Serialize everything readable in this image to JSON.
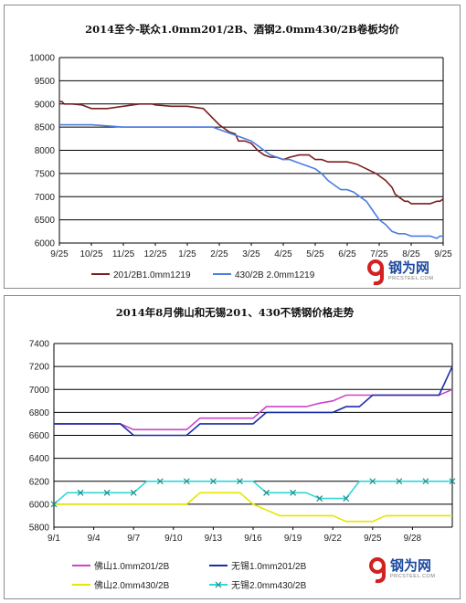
{
  "charts": [
    {
      "type": "line",
      "title": "2014至今-联众1.0mm201/2B、酒钢2.0mm430/2B卷板均价",
      "ylim": [
        6000,
        10000
      ],
      "yticks": [
        "6000",
        "6500",
        "7000",
        "7500",
        "8000",
        "8500",
        "9000",
        "9500",
        "10000"
      ],
      "x_labels": [
        "9/25",
        "10/25",
        "11/25",
        "12/25",
        "1/25",
        "2/25",
        "3/25",
        "4/25",
        "5/25",
        "6/25",
        "7/25",
        "8/25",
        "9/25"
      ],
      "grid": true,
      "legend_position": "bottom",
      "series": [
        {
          "name": "201/2B1.0mm1219",
          "color": "#7b1e1e",
          "x": [
            0,
            0.08,
            0.15,
            0.4,
            0.7,
            1.0,
            1.5,
            2.0,
            2.5,
            2.9,
            3.0,
            3.5,
            4.0,
            4.5,
            5.0,
            5.3,
            5.5,
            5.6,
            5.8,
            6.0,
            6.2,
            6.4,
            6.6,
            6.8,
            7.0,
            7.2,
            7.5,
            7.8,
            8.0,
            8.2,
            8.4,
            8.6,
            9.0,
            9.3,
            9.6,
            9.9,
            10.0,
            10.2,
            10.4,
            10.5,
            10.7,
            10.8,
            10.9,
            11.0,
            11.2,
            11.4,
            11.6,
            11.8,
            11.9,
            12.0
          ],
          "y": [
            9050,
            9050,
            9000,
            9000,
            8980,
            8900,
            8900,
            8950,
            9000,
            9000,
            8980,
            8950,
            8950,
            8900,
            8550,
            8400,
            8350,
            8200,
            8200,
            8150,
            8000,
            7900,
            7850,
            7850,
            7800,
            7850,
            7900,
            7900,
            7800,
            7800,
            7750,
            7750,
            7750,
            7700,
            7600,
            7500,
            7450,
            7350,
            7200,
            7050,
            6950,
            6900,
            6900,
            6850,
            6850,
            6850,
            6850,
            6900,
            6900,
            6950
          ]
        },
        {
          "name": "430/2B 2.0mm1219",
          "color": "#4a7de0",
          "x": [
            0,
            1.0,
            2.0,
            3.0,
            4.0,
            4.8,
            5.0,
            5.2,
            5.4,
            5.6,
            5.8,
            6.0,
            6.2,
            6.4,
            6.6,
            6.8,
            7.0,
            7.2,
            7.4,
            7.6,
            7.8,
            8.0,
            8.2,
            8.4,
            8.6,
            8.8,
            9.0,
            9.2,
            9.4,
            9.6,
            9.8,
            10.0,
            10.2,
            10.4,
            10.6,
            10.8,
            11.0,
            11.2,
            11.4,
            11.6,
            11.8,
            11.9,
            12.0
          ],
          "y": [
            8550,
            8550,
            8500,
            8500,
            8500,
            8500,
            8450,
            8400,
            8350,
            8300,
            8250,
            8200,
            8100,
            8000,
            7900,
            7850,
            7800,
            7800,
            7750,
            7700,
            7650,
            7600,
            7500,
            7350,
            7250,
            7150,
            7150,
            7100,
            7000,
            6900,
            6700,
            6500,
            6400,
            6250,
            6200,
            6200,
            6150,
            6150,
            6150,
            6150,
            6100,
            6150,
            6150
          ]
        }
      ]
    },
    {
      "type": "line",
      "title": "2014年8月佛山和无锡201、430不锈钢价格走势",
      "ylim": [
        5800,
        7400
      ],
      "yticks": [
        "5800",
        "6000",
        "6200",
        "6400",
        "6600",
        "6800",
        "7000",
        "7200",
        "7400"
      ],
      "x_labels": [
        "9/1",
        "9/4",
        "9/7",
        "9/10",
        "9/13",
        "9/16",
        "9/19",
        "9/22",
        "9/25",
        "9/28"
      ],
      "grid": true,
      "legend_position": "bottom",
      "series": [
        {
          "name": "佛山1.0mm201/2B",
          "color": "#cc44cc",
          "marker": "none",
          "x": [
            0,
            1,
            2,
            3,
            4,
            5,
            6,
            7,
            8,
            9,
            10,
            11,
            12,
            13,
            14,
            15,
            16,
            17,
            18,
            19,
            20,
            21,
            22,
            23,
            24,
            25,
            26,
            27,
            28,
            29,
            30
          ],
          "y": [
            6700,
            6700,
            6700,
            6700,
            6700,
            6700,
            6650,
            6650,
            6650,
            6650,
            6650,
            6750,
            6750,
            6750,
            6750,
            6750,
            6850,
            6850,
            6850,
            6850,
            6880,
            6900,
            6950,
            6950,
            6950,
            6950,
            6950,
            6950,
            6950,
            6950,
            7000
          ]
        },
        {
          "name": "无锡1.0mm201/2B",
          "color": "#1a2ea8",
          "marker": "none",
          "x": [
            0,
            1,
            2,
            3,
            4,
            5,
            6,
            7,
            8,
            9,
            10,
            11,
            12,
            13,
            14,
            15,
            16,
            17,
            18,
            19,
            20,
            21,
            22,
            23,
            24,
            25,
            26,
            27,
            28,
            29,
            30
          ],
          "y": [
            6700,
            6700,
            6700,
            6700,
            6700,
            6700,
            6600,
            6600,
            6600,
            6600,
            6600,
            6700,
            6700,
            6700,
            6700,
            6700,
            6800,
            6800,
            6800,
            6800,
            6800,
            6800,
            6850,
            6850,
            6950,
            6950,
            6950,
            6950,
            6950,
            6950,
            7200
          ]
        },
        {
          "name": "佛山2.0mm430/2B",
          "color": "#e6e600",
          "marker": "none",
          "x": [
            0,
            1,
            2,
            3,
            4,
            5,
            6,
            7,
            8,
            9,
            10,
            11,
            12,
            13,
            14,
            15,
            16,
            17,
            18,
            19,
            20,
            21,
            22,
            23,
            24,
            25,
            26,
            27,
            28,
            29,
            30
          ],
          "y": [
            6000,
            6000,
            6000,
            6000,
            6000,
            6000,
            6000,
            6000,
            6000,
            6000,
            6000,
            6100,
            6100,
            6100,
            6100,
            6000,
            5950,
            5900,
            5900,
            5900,
            5900,
            5900,
            5850,
            5850,
            5850,
            5900,
            5900,
            5900,
            5900,
            5900,
            5900
          ]
        },
        {
          "name": "无锡2.0mm430/2B",
          "color": "#33d6d6",
          "marker": "x",
          "x": [
            0,
            1,
            2,
            3,
            4,
            5,
            6,
            7,
            8,
            9,
            10,
            11,
            12,
            13,
            14,
            15,
            16,
            17,
            18,
            19,
            20,
            21,
            22,
            23,
            24,
            25,
            26,
            27,
            28,
            29,
            30
          ],
          "y": [
            6000,
            6100,
            6100,
            6100,
            6100,
            6100,
            6100,
            6200,
            6200,
            6200,
            6200,
            6200,
            6200,
            6200,
            6200,
            6200,
            6100,
            6100,
            6100,
            6100,
            6050,
            6050,
            6050,
            6200,
            6200,
            6200,
            6200,
            6200,
            6200,
            6200,
            6200
          ]
        }
      ]
    }
  ],
  "chart_data": [
    {
      "type": "line",
      "title": "2014至今-联众1.0mm201/2B、酒钢2.0mm430/2B卷板均价",
      "ylim": [
        6000,
        10000
      ],
      "categories": [
        "9/25",
        "10/25",
        "11/25",
        "12/25",
        "1/25",
        "2/25",
        "3/25",
        "4/25",
        "5/25",
        "6/25",
        "7/25",
        "8/25",
        "9/25"
      ],
      "series": [
        {
          "name": "201/2B1.0mm1219",
          "values": [
            9050,
            8950,
            9000,
            9000,
            8950,
            8950,
            8250,
            7850,
            7850,
            7750,
            7600,
            6900,
            6950
          ]
        },
        {
          "name": "430/2B 2.0mm1219",
          "values": [
            8550,
            8550,
            8500,
            8500,
            8500,
            8500,
            8200,
            7800,
            7600,
            7150,
            6500,
            6150,
            6150
          ]
        }
      ]
    },
    {
      "type": "line",
      "title": "2014年8月佛山和无锡201、430不锈钢价格走势",
      "ylim": [
        5800,
        7400
      ],
      "categories": [
        "9/1",
        "9/4",
        "9/7",
        "9/10",
        "9/13",
        "9/16",
        "9/19",
        "9/22",
        "9/25",
        "9/28"
      ],
      "series": [
        {
          "name": "佛山1.0mm201/2B",
          "values": [
            6700,
            6700,
            6650,
            6750,
            6750,
            6850,
            6900,
            6950,
            6950,
            6950
          ]
        },
        {
          "name": "无锡1.0mm201/2B",
          "values": [
            6700,
            6700,
            6600,
            6700,
            6700,
            6800,
            6800,
            6850,
            6950,
            6950
          ]
        },
        {
          "name": "佛山2.0mm430/2B",
          "values": [
            6000,
            6000,
            6000,
            6100,
            6000,
            5900,
            5900,
            5850,
            5900,
            5900
          ]
        },
        {
          "name": "无锡2.0mm430/2B",
          "values": [
            6000,
            6100,
            6200,
            6200,
            6200,
            6100,
            6050,
            6200,
            6200,
            6200
          ]
        }
      ]
    }
  ],
  "logo": {
    "text": "钢为网",
    "sub": "PRCSTEEL.COM",
    "color": "#d32020"
  }
}
